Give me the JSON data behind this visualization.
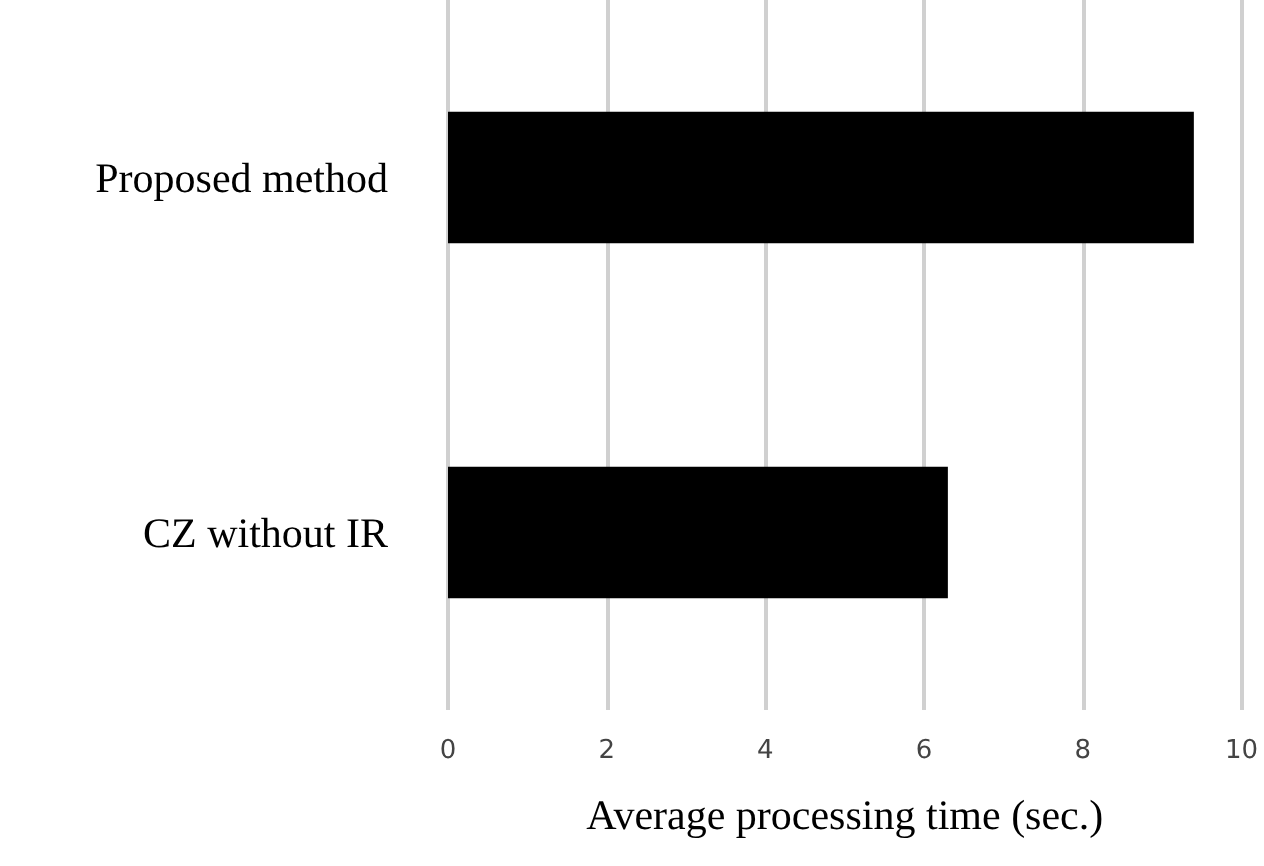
{
  "chart_data": {
    "type": "bar",
    "orientation": "horizontal",
    "categories": [
      "Proposed method",
      "CZ without IR"
    ],
    "values": [
      9.4,
      6.3
    ],
    "color": "#000000",
    "xlabel": "Average processing time (sec.)",
    "xlim": [
      0,
      10
    ],
    "xticks": [
      0,
      2,
      4,
      6,
      8,
      10
    ],
    "grid": "x"
  }
}
